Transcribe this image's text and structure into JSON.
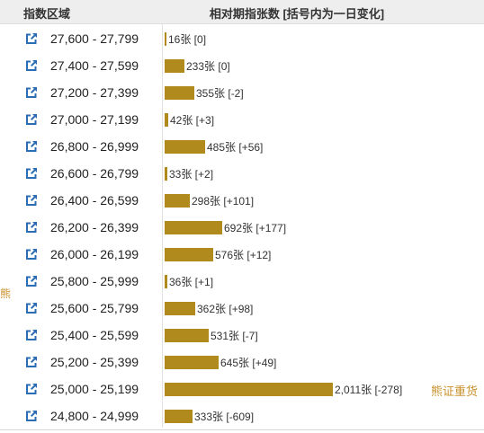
{
  "header": {
    "range_label": "指数区域",
    "count_label": "相对期指张数 [括号内为一日变化]"
  },
  "annotations": {
    "bear_left": "熊",
    "bear_right": "熊证重货"
  },
  "chart_data": {
    "type": "bar",
    "orientation": "horizontal",
    "unit": "张",
    "categories": [
      "27,600 - 27,799",
      "27,400 - 27,599",
      "27,200 - 27,399",
      "27,000 - 27,199",
      "26,800 - 26,999",
      "26,600 - 26,799",
      "26,400 - 26,599",
      "26,200 - 26,399",
      "26,000 - 26,199",
      "25,800 - 25,999",
      "25,600 - 25,799",
      "25,400 - 25,599",
      "25,200 - 25,399",
      "25,000 - 25,199",
      "24,800 - 24,999"
    ],
    "values": [
      16,
      233,
      355,
      42,
      485,
      33,
      298,
      692,
      576,
      36,
      362,
      531,
      645,
      2011,
      333
    ],
    "labels": [
      "16张 [0]",
      "233张 [0]",
      "355张 [-2]",
      "42张 [+3]",
      "485张 [+56]",
      "33张 [+2]",
      "298张 [+101]",
      "692张 [+177]",
      "576张 [+12]",
      "36张 [+1]",
      "362张 [+98]",
      "531张 [-7]",
      "645张 [+49]",
      "2,011张 [-278]",
      "333张 [-609]"
    ],
    "changes": [
      0,
      0,
      -2,
      3,
      56,
      2,
      101,
      177,
      12,
      1,
      98,
      -7,
      49,
      -278,
      -609
    ],
    "xlim": [
      0,
      2011
    ],
    "grid": false,
    "colors": {
      "bar": "#b08a1c",
      "icon": "#2a6db5",
      "annotation": "#c8902a"
    }
  }
}
